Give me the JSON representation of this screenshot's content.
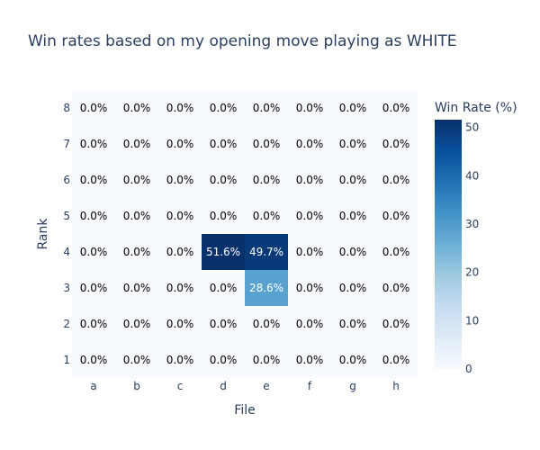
{
  "chart_data": {
    "type": "heatmap",
    "title": "Win rates based on my opening move playing as WHITE",
    "xlabel": "File",
    "ylabel": "Rank",
    "x": [
      "a",
      "b",
      "c",
      "d",
      "e",
      "f",
      "g",
      "h"
    ],
    "y": [
      "1",
      "2",
      "3",
      "4",
      "5",
      "6",
      "7",
      "8"
    ],
    "z": [
      [
        0,
        0,
        0,
        0,
        0,
        0,
        0,
        0
      ],
      [
        0,
        0,
        0,
        0,
        0,
        0,
        0,
        0
      ],
      [
        0,
        0,
        0,
        0,
        28.6,
        0,
        0,
        0
      ],
      [
        0,
        0,
        0,
        51.6,
        49.7,
        0,
        0,
        0
      ],
      [
        0,
        0,
        0,
        0,
        0,
        0,
        0,
        0
      ],
      [
        0,
        0,
        0,
        0,
        0,
        0,
        0,
        0
      ],
      [
        0,
        0,
        0,
        0,
        0,
        0,
        0,
        0
      ],
      [
        0,
        0,
        0,
        0,
        0,
        0,
        0,
        0
      ]
    ],
    "value_suffix": "%",
    "colorbar": {
      "title": "Win Rate (%)",
      "ticks": [
        0,
        10,
        20,
        30,
        40,
        50
      ],
      "range": [
        0,
        51.6
      ],
      "colorscale": "Blues"
    }
  }
}
